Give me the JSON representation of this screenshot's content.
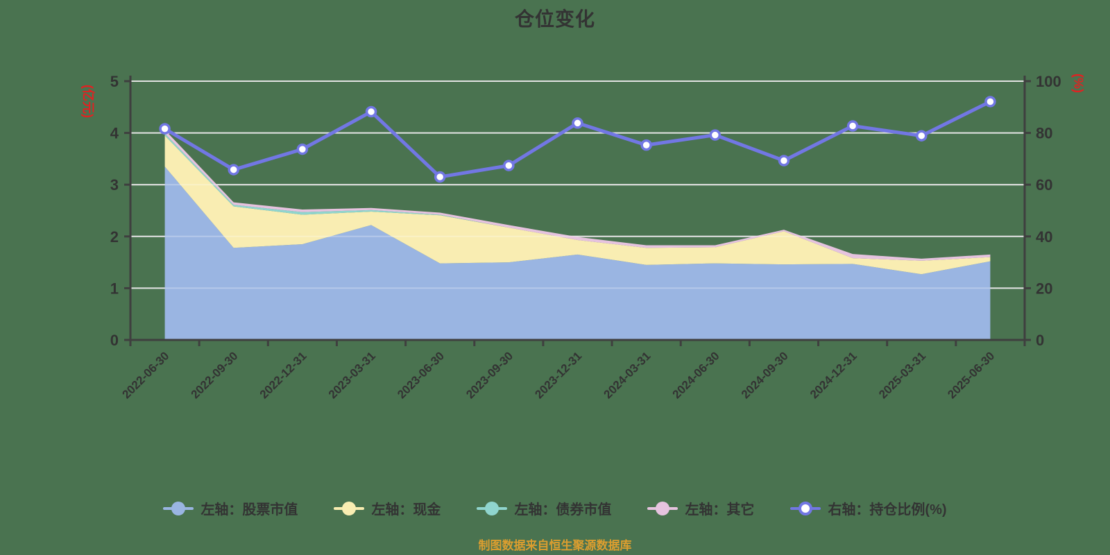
{
  "colors": {
    "background": "#4a7350",
    "grid": "#d9d9d9",
    "grid_overlay": "rgba(255,255,255,0.28)",
    "axis": "#3f3f3f",
    "tick_text": "#333333",
    "title_text": "#333333",
    "axis_unit_text": "#e02222",
    "footer_text": "#dc9e2f",
    "marker_fill": "#ffffff"
  },
  "footer": {
    "note": "制图数据来自恒生聚源数据库"
  },
  "chart_data": {
    "type": "area",
    "title": "仓位变化",
    "subtitle": "",
    "grid": true,
    "legend_position": "bottom",
    "categories": [
      "2022-06-30",
      "2022-09-30",
      "2022-12-31",
      "2023-03-31",
      "2023-06-30",
      "2023-09-30",
      "2023-12-31",
      "2024-03-31",
      "2024-06-30",
      "2024-09-30",
      "2024-12-31",
      "2025-03-31",
      "2025-06-30"
    ],
    "series": [
      {
        "id": "stock",
        "name": "左轴：股票市值",
        "type": "area",
        "axis": "left",
        "stack": true,
        "color": "#9ab5e2",
        "values": [
          3.35,
          1.78,
          1.85,
          2.22,
          1.48,
          1.5,
          1.65,
          1.45,
          1.48,
          1.46,
          1.47,
          1.27,
          1.52
        ]
      },
      {
        "id": "cash",
        "name": "左轴：现金",
        "type": "area",
        "axis": "left",
        "stack": true,
        "color": "#f9edb2",
        "values": [
          0.6,
          0.8,
          0.57,
          0.26,
          0.93,
          0.67,
          0.28,
          0.33,
          0.31,
          0.64,
          0.11,
          0.26,
          0.08
        ]
      },
      {
        "id": "bond",
        "name": "左轴：债券市值",
        "type": "area",
        "axis": "left",
        "stack": true,
        "color": "#90d5ce",
        "values": [
          0.04,
          0.03,
          0.05,
          0.03,
          0.01,
          0,
          0,
          0,
          0,
          0,
          0,
          0,
          0
        ]
      },
      {
        "id": "other",
        "name": "左轴：其它",
        "type": "area",
        "axis": "left",
        "stack": true,
        "color": "#e6c3df",
        "values": [
          0.07,
          0.05,
          0.05,
          0.04,
          0.04,
          0.05,
          0.06,
          0.05,
          0.04,
          0.03,
          0.08,
          0.04,
          0.05
        ]
      },
      {
        "id": "position",
        "name": "右轴：持仓比例(%)",
        "type": "line",
        "axis": "right",
        "stack": false,
        "color": "#7277e4",
        "values": [
          81.6,
          65.8,
          73.7,
          88.2,
          63.0,
          67.4,
          83.8,
          75.3,
          79.2,
          69.3,
          82.7,
          78.9,
          92.1
        ]
      }
    ],
    "left_axis": {
      "unit": "(亿元)",
      "min": 0,
      "max": 5,
      "ticks": [
        0,
        1,
        2,
        3,
        4,
        5
      ]
    },
    "right_axis": {
      "unit": "(%)",
      "min": 0,
      "max": 100,
      "ticks": [
        0,
        20,
        40,
        60,
        80,
        100
      ]
    }
  }
}
